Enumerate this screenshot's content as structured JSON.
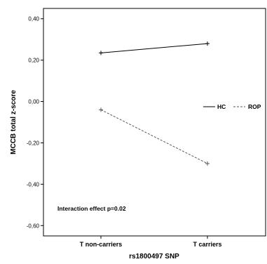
{
  "chart_data": {
    "type": "line",
    "xlabel": "rs1800497 SNP",
    "ylabel": "MCCB total z-score",
    "categories": [
      "T non-carriers",
      "T carriers"
    ],
    "ylim": [
      -0.65,
      0.45
    ],
    "yticks": [
      -0.6,
      -0.4,
      -0.2,
      0.0,
      0.2,
      0.4
    ],
    "ytick_labels": [
      "-0,60",
      "-0,40",
      "-0,20",
      "0,00",
      "0,20",
      "0,40"
    ],
    "grid": false,
    "legend_position": "right",
    "series": [
      {
        "name": "HC",
        "values": [
          0.235,
          0.28
        ],
        "color": "#000000",
        "dash": "solid"
      },
      {
        "name": "ROP",
        "values": [
          -0.04,
          -0.3
        ],
        "color": "#555555",
        "dash": "dashed"
      }
    ],
    "annotation": "Interaction effect p=0.02"
  }
}
